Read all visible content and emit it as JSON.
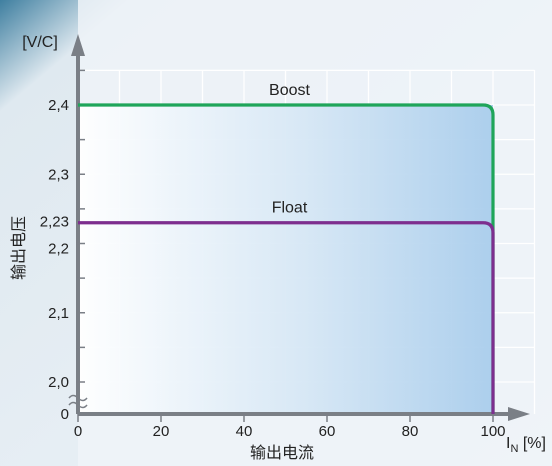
{
  "chart_data": {
    "type": "line",
    "y_unit": "[V/C]",
    "ylabel": "输出电压",
    "xlabel": "输出电流",
    "x_unit_main": "I",
    "x_unit_sub": "N",
    "x_unit_tail": " [%]",
    "xlim": [
      0,
      100
    ],
    "ylim": [
      1.95,
      2.45
    ],
    "y_break": true,
    "x_ticks": [
      {
        "value": 0,
        "label": "0"
      },
      {
        "value": 20,
        "label": "20"
      },
      {
        "value": 40,
        "label": "40"
      },
      {
        "value": 60,
        "label": "60"
      },
      {
        "value": 80,
        "label": "80"
      },
      {
        "value": 100,
        "label": "100"
      }
    ],
    "y_ticks": [
      {
        "value": 2.0,
        "label": "2,0"
      },
      {
        "value": 2.1,
        "label": "2,1"
      },
      {
        "value": 2.2,
        "label": "2,2"
      },
      {
        "value": 2.23,
        "label": "2,23"
      },
      {
        "value": 2.3,
        "label": "2,3"
      },
      {
        "value": 2.4,
        "label": "2,4"
      }
    ],
    "y_zero_label": "0",
    "grid": true,
    "series": [
      {
        "name": "Boost",
        "color": "#1fa55a",
        "x": [
          0,
          100,
          100
        ],
        "y": [
          2.4,
          2.4,
          0
        ]
      },
      {
        "name": "Float",
        "color": "#7d2e8e",
        "x": [
          0,
          100,
          100
        ],
        "y": [
          2.23,
          2.23,
          0
        ]
      }
    ]
  },
  "colors": {
    "axis": "#7a7f86",
    "grid": "#ffffff",
    "region_start": "#ffffff",
    "region_end": "#a9cdec"
  }
}
